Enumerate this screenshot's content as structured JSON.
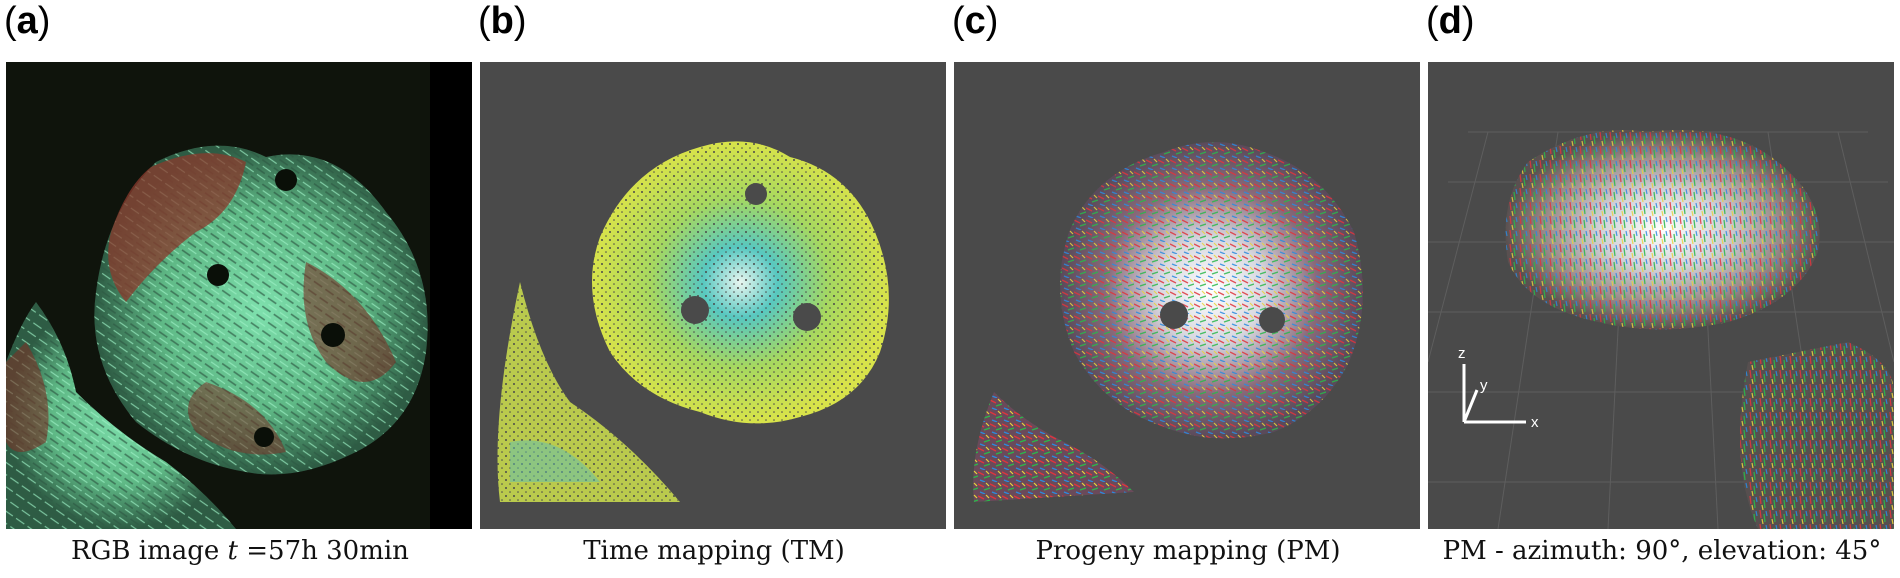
{
  "panels": [
    {
      "letter": "a",
      "caption": "RGB image t =57h 30min",
      "caption_parts": {
        "prefix": "RGB image ",
        "var": "t",
        "suffix": " =57h 30min"
      }
    },
    {
      "letter": "b",
      "caption": "Time mapping (TM)"
    },
    {
      "letter": "c",
      "caption": "Progeny mapping (PM)"
    },
    {
      "letter": "d",
      "caption": "PM - azimuth: 90°, elevation: 45°",
      "axes": {
        "z": "z",
        "y": "y",
        "x": "x"
      }
    }
  ],
  "colors": {
    "panel_background_dark": "#4a4a4a",
    "rgb_background": "#0c1108",
    "rgb_green": "#6fd39a",
    "rgb_red": "#8a3428",
    "tm_yellow": "#d8e34a",
    "tm_cyan": "#58c8c0"
  }
}
